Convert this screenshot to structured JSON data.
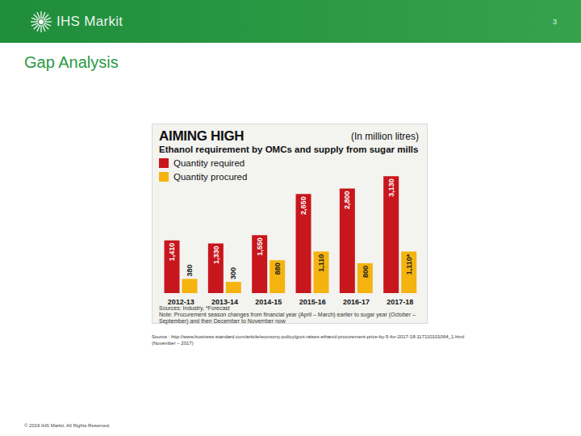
{
  "header": {
    "logo": "IHS Markit",
    "page_number": "3"
  },
  "slide_title": "Gap Analysis",
  "chart_data": {
    "type": "bar",
    "title": "AIMING HIGH",
    "ylabel": "(In million litres)",
    "subtitle": "Ethanol requirement by OMCs and supply from sugar mills",
    "categories": [
      "2012-13",
      "2013-14",
      "2014-15",
      "2015-16",
      "2016-17",
      "2017-18"
    ],
    "series": [
      {
        "name": "Quantity required",
        "color": "#c8161d",
        "values": [
          1410,
          1330,
          1550,
          2650,
          2800,
          3130
        ],
        "value_labels": [
          "1,410",
          "1,330",
          "1,550",
          "2,650",
          "2,800",
          "3,130"
        ]
      },
      {
        "name": "Quantity procured",
        "color": "#f5b30f",
        "values": [
          380,
          300,
          880,
          1110,
          800,
          1110
        ],
        "value_labels": [
          "380",
          "300",
          "880",
          "1,110",
          "800",
          "1,110*"
        ]
      }
    ],
    "ylim": [
      0,
      3500
    ],
    "data_labels": true,
    "tick_labels": "x",
    "grid": false,
    "annotations": [
      "Sources: Industry, *Forecast",
      "Note: Procurement season changes from financial year (April – March) earlier to sugar year (October – September) and then December to November now"
    ]
  },
  "source": "Source : http://www.business-standard.com/article/economy-policy/govt-raises-ethanol-procurement-price-by-5-for-2017-18-117110101064_1.html",
  "source_date": "(November – 2017)",
  "footer": "© 2019 IHS Markit. All Rights Reserved."
}
